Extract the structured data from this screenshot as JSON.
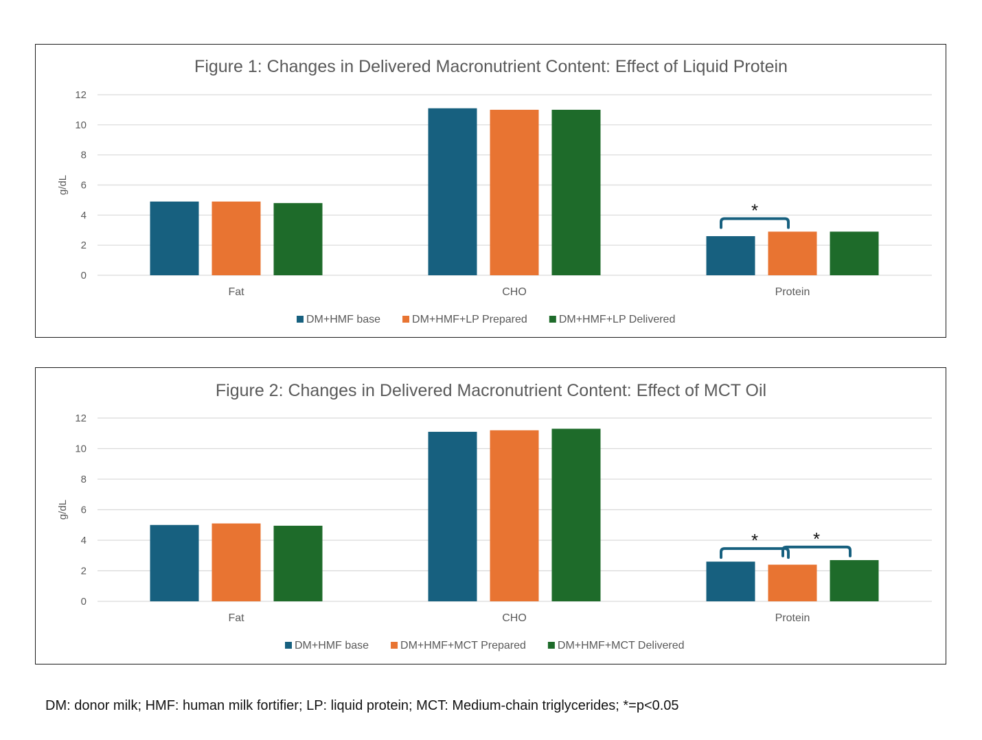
{
  "colors": {
    "series1": "#17607f",
    "series2": "#e87432",
    "series3": "#1e6b2a",
    "bracket": "#17607f",
    "grid": "#d9d9d9",
    "text": "#595959"
  },
  "chart_data": [
    {
      "type": "bar",
      "title": "Figure 1: Changes in Delivered Macronutrient Content: Effect of Liquid Protein",
      "ylabel": "g/dL",
      "ylim": [
        0,
        12
      ],
      "yticks": [
        "0",
        "2",
        "4",
        "6",
        "8",
        "10",
        "12"
      ],
      "grid": true,
      "legend_position": "bottom",
      "categories": [
        "Fat",
        "CHO",
        "Protein"
      ],
      "series": [
        {
          "name": "DM+HMF base",
          "values": [
            4.9,
            11.1,
            2.6
          ]
        },
        {
          "name": "DM+HMF+LP Prepared",
          "values": [
            4.9,
            11.0,
            2.9
          ]
        },
        {
          "name": "DM+HMF+LP Delivered",
          "values": [
            4.8,
            11.0,
            2.9
          ]
        }
      ],
      "annotations": [
        {
          "text": "*",
          "category": "Protein",
          "from_series": 0,
          "to_series": 1
        }
      ]
    },
    {
      "type": "bar",
      "title": "Figure 2: Changes in Delivered Macronutrient Content: Effect of MCT Oil",
      "ylabel": "g/dL",
      "ylim": [
        0,
        12
      ],
      "yticks": [
        "0",
        "2",
        "4",
        "6",
        "8",
        "10",
        "12"
      ],
      "grid": true,
      "legend_position": "bottom",
      "categories": [
        "Fat",
        "CHO",
        "Protein"
      ],
      "series": [
        {
          "name": "DM+HMF base",
          "values": [
            5.0,
            11.1,
            2.6
          ]
        },
        {
          "name": "DM+HMF+MCT Prepared",
          "values": [
            5.1,
            11.2,
            2.4
          ]
        },
        {
          "name": "DM+HMF+MCT Delivered",
          "values": [
            4.95,
            11.3,
            2.7
          ]
        }
      ],
      "annotations": [
        {
          "text": "*",
          "category": "Protein",
          "from_series": 0,
          "to_series": 1
        },
        {
          "text": "*",
          "category": "Protein",
          "from_series": 1,
          "to_series": 2
        }
      ]
    }
  ],
  "footnote": "DM: donor milk; HMF: human milk fortifier; LP: liquid protein; MCT: Medium-chain triglycerides; *=p<0.05"
}
